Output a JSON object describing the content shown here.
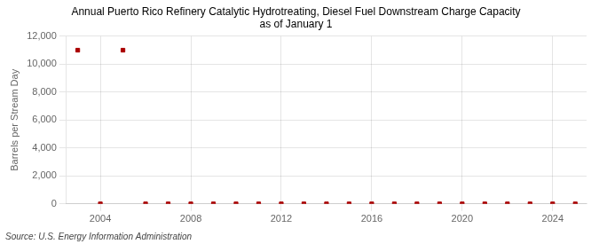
{
  "chart_data": {
    "type": "scatter",
    "title": "Annual Puerto Rico Refinery Catalytic Hydrotreating, Diesel Fuel Downstream Charge Capacity\nas of January 1",
    "ylabel": "Barrels per Stream Day",
    "source": "Source: U.S. Energy Information Administration",
    "x": [
      2003,
      2004,
      2005,
      2006,
      2007,
      2008,
      2009,
      2010,
      2011,
      2012,
      2013,
      2014,
      2015,
      2016,
      2017,
      2018,
      2019,
      2020,
      2021,
      2022,
      2023,
      2024,
      2025
    ],
    "values": [
      11000,
      0,
      11000,
      0,
      0,
      0,
      0,
      0,
      0,
      0,
      0,
      0,
      0,
      0,
      0,
      0,
      0,
      0,
      0,
      0,
      0,
      0,
      0
    ],
    "color": "#aa0000",
    "marker": "square",
    "xlim": [
      2002.5,
      2025.5
    ],
    "xticks": [
      2004,
      2008,
      2012,
      2016,
      2020,
      2024
    ],
    "ylim": [
      0,
      12000
    ],
    "yticks": [
      0,
      {
        "value": 2000,
        "label": "2,000"
      },
      {
        "value": 4000,
        "label": "4,000"
      },
      {
        "value": 6000,
        "label": "6,000"
      },
      {
        "value": 8000,
        "label": "8,000"
      },
      {
        "value": 10000,
        "label": "10,000"
      },
      {
        "value": 12000,
        "label": "12,000"
      }
    ],
    "grid": true
  }
}
